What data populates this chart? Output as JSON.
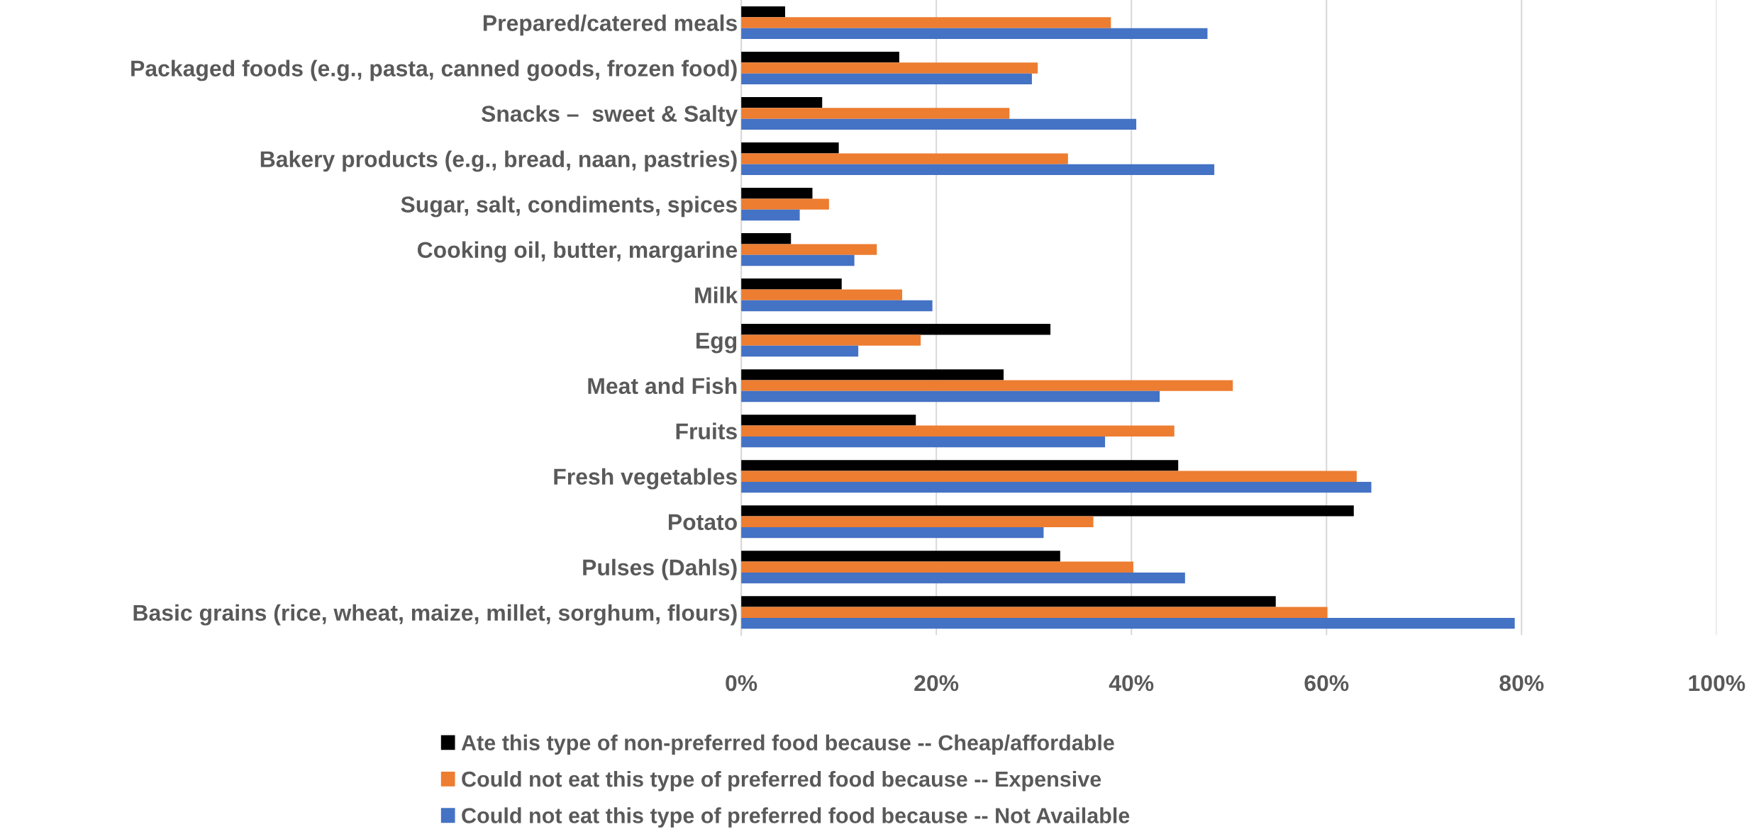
{
  "chart_data": {
    "type": "bar",
    "orientation": "horizontal",
    "categories": [
      "Prepared/catered meals",
      "Packaged foods (e.g., pasta, canned goods, frozen food)",
      "Snacks –  sweet & Salty",
      "Bakery products (e.g., bread, naan, pastries)",
      "Sugar, salt, condiments, spices",
      "Cooking oil, butter, margarine",
      "Milk",
      "Egg",
      "Meat and Fish",
      "Fruits",
      "Fresh vegetables",
      "Potato",
      "Pulses (Dahls)",
      "Basic grains (rice, wheat, maize, millet, sorghum, flours)"
    ],
    "series": [
      {
        "name": "Ate this type of non-preferred food because -- Cheap/affordable",
        "color": "#000000",
        "values": [
          4.5,
          16.2,
          8.3,
          10.0,
          7.3,
          5.1,
          10.3,
          31.7,
          26.9,
          17.9,
          44.8,
          62.8,
          32.7,
          54.8
        ]
      },
      {
        "name": "Could not eat this type of preferred food because -- Expensive",
        "color": "#ed7d31",
        "values": [
          37.9,
          30.4,
          27.5,
          33.5,
          9.0,
          13.9,
          16.5,
          18.4,
          50.4,
          44.4,
          63.1,
          36.1,
          40.2,
          60.1
        ]
      },
      {
        "name": "Could not eat this type of preferred food because -- Not Available",
        "color": "#4472c4",
        "values": [
          47.8,
          29.8,
          40.5,
          48.5,
          6.0,
          11.6,
          19.6,
          12.0,
          42.9,
          37.3,
          64.6,
          31.0,
          45.5,
          79.3
        ]
      }
    ],
    "xlim": [
      0,
      100
    ],
    "xticks": [
      {
        "value": 0,
        "label": "0%"
      },
      {
        "value": 20,
        "label": "20%"
      },
      {
        "value": 40,
        "label": "40%"
      },
      {
        "value": 60,
        "label": "60%"
      },
      {
        "value": 80,
        "label": "80%"
      },
      {
        "value": 100,
        "label": "100%"
      }
    ],
    "grid": "x",
    "legend": "bottom"
  }
}
